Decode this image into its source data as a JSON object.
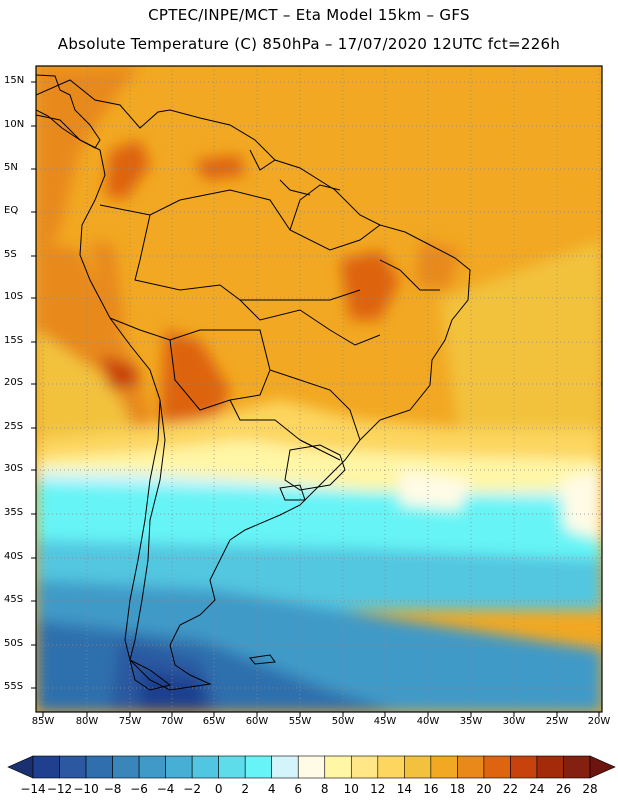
{
  "header": {
    "title_line1": "CPTEC/INPE/MCT –  Eta Model 15km – GFS",
    "title_line2": "Absolute Temperature (C) 850hPa – 17/07/2020 12UTC fct=226h"
  },
  "axes": {
    "latitude_labels": [
      "15N",
      "10N",
      "5N",
      "EQ",
      "5S",
      "10S",
      "15S",
      "20S",
      "25S",
      "30S",
      "35S",
      "40S",
      "45S",
      "50S",
      "55S"
    ],
    "longitude_labels": [
      "85W",
      "80W",
      "75W",
      "70W",
      "65W",
      "60W",
      "55W",
      "50W",
      "45W",
      "40W",
      "35W",
      "30W",
      "25W",
      "20W"
    ]
  },
  "colorbar": {
    "labels": [
      "-14",
      "-12",
      "-10",
      "-8",
      "-6",
      "-4",
      "-2",
      "0",
      "2",
      "4",
      "6",
      "8",
      "10",
      "12",
      "14",
      "16",
      "18",
      "20",
      "22",
      "24",
      "26",
      "28"
    ],
    "colors": [
      "#1f3f8f",
      "#2b58a0",
      "#2f6fae",
      "#3a86bb",
      "#3f9ac7",
      "#48afd4",
      "#52c6e0",
      "#5fdcea",
      "#66f4f6",
      "#d2f4fa",
      "#fffbe6",
      "#fff6a6",
      "#ffe686",
      "#fcd65f",
      "#f2c23d",
      "#f2a822",
      "#e8891a",
      "#de6410",
      "#c7420c",
      "#a42b0a",
      "#842010"
    ],
    "under_color": "#1a3070",
    "over_color": "#6b1410"
  }
}
